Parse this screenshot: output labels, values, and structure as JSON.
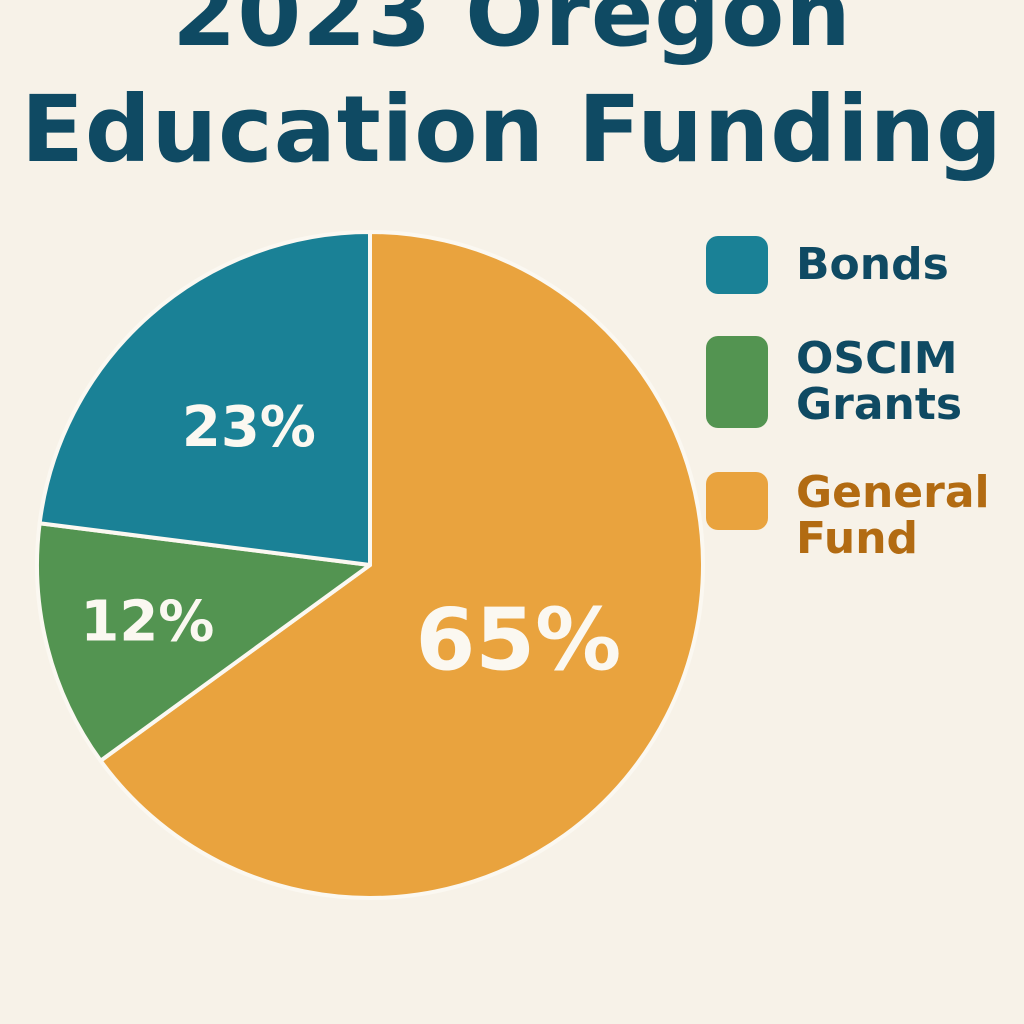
{
  "title": {
    "line1": "2023 Oregon",
    "line2": "Education Funding"
  },
  "colors": {
    "background": "#f7f2e8",
    "title": "#0f4a63",
    "bonds": "#1a8196",
    "grants": "#539451",
    "general_fund": "#e9a33e",
    "bonds_label": "#0f4a63",
    "grants_label": "#0f4a63",
    "general_fund_label": "#b26b12",
    "slice_text": "#fbf8f1"
  },
  "legend": {
    "items": [
      {
        "label": "Bonds",
        "color": "#1a8196",
        "text_color": "#0f4a63"
      },
      {
        "label": "OSCIM Grants",
        "color": "#539451",
        "text_color": "#0f4a63"
      },
      {
        "label": "General Fund",
        "color": "#e9a33e",
        "text_color": "#b26b12"
      }
    ]
  },
  "chart_data": {
    "type": "pie",
    "title": "2023 Oregon Education Funding",
    "legend_position": "right",
    "slices": [
      {
        "label": "General Fund",
        "value": 65,
        "display": "65%",
        "color": "#e9a33e"
      },
      {
        "label": "OSCIM Grants",
        "value": 12,
        "display": "12%",
        "color": "#539451"
      },
      {
        "label": "Bonds",
        "value": 23,
        "display": "23%",
        "color": "#1a8196"
      }
    ]
  }
}
